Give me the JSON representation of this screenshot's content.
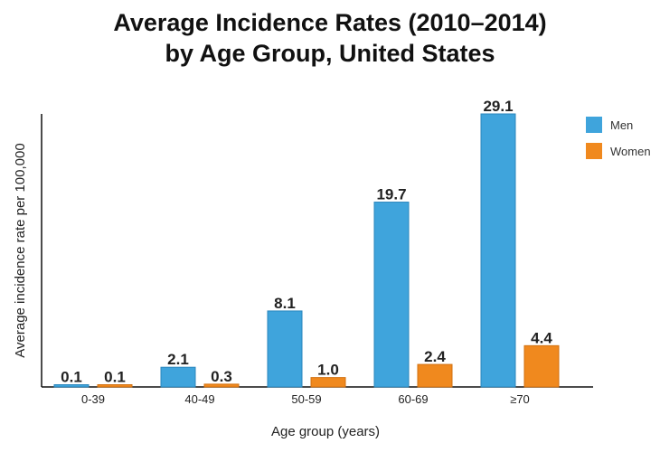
{
  "chart_data": {
    "type": "bar",
    "title_line1": "Average Incidence Rates (2010–2014)",
    "title_line2": "by Age Group, United States",
    "xlabel": "Age group (years)",
    "ylabel": "Average incidence rate per 100,000",
    "categories": [
      "0-39",
      "40-49",
      "50-59",
      "60-69",
      "≥70"
    ],
    "series": [
      {
        "name": "Men",
        "color": "#3fa4dc",
        "values": [
          0.1,
          2.1,
          8.1,
          19.7,
          29.1
        ],
        "labels": [
          "0.1",
          "2.1",
          "8.1",
          "19.7",
          "29.1"
        ]
      },
      {
        "name": "Women",
        "color": "#f0891e",
        "values": [
          0.1,
          0.3,
          1.0,
          2.4,
          4.4
        ],
        "labels": [
          "0.1",
          "0.3",
          "1.0",
          "2.4",
          "4.4"
        ]
      }
    ],
    "ylim": [
      0,
      29.1
    ],
    "grid": false,
    "legend": "top-right"
  }
}
